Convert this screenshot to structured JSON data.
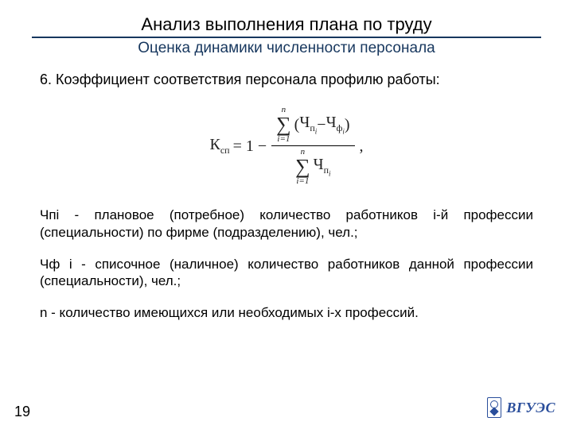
{
  "colors": {
    "rule": "#17375e",
    "subtitle": "#17375e",
    "text": "#000000",
    "logo": "#2a4e9b",
    "background": "#ffffff"
  },
  "title": "Анализ выполнения плана по труду",
  "subtitle": "Оценка динамики численности персонала",
  "item_heading": "6. Коэффициент соответствия персонала профилю работы:",
  "formula": {
    "lhs_main": "К",
    "lhs_sub": "сп",
    "eq": " = 1 − ",
    "sigma_top": "n",
    "sigma_bot": "i=1",
    "num_open": "(",
    "num_t1_main": "Ч",
    "num_t1_sub": "п",
    "num_t1_subsub": "i",
    "num_minus": " − ",
    "num_t2_main": "Ч",
    "num_t2_sub": "ф",
    "num_t2_subsub": "i",
    "num_close": ")",
    "den_main": "Ч",
    "den_sub": "п",
    "den_subsub": "i",
    "tail": " ,"
  },
  "defs": {
    "p1": "Чпi - плановое (потребное) количество работников i-й профессии (специальности) по фирме (подразделению), чел.;",
    "p2": "Чф i - списочное (наличное) количество работников данной профессии (специальности), чел.;",
    "p3": "n - количество имеющихся или необходимых i-х профессий."
  },
  "page_number": "19",
  "logo_text": "ВГУЭС"
}
